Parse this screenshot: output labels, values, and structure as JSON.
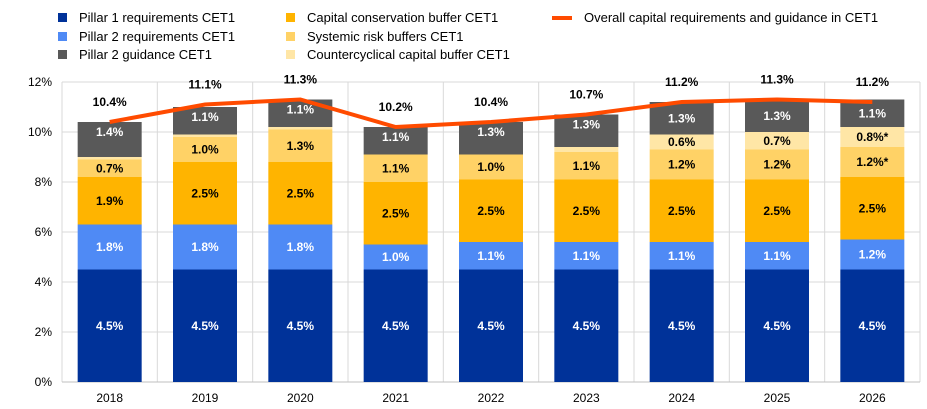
{
  "chart_data": {
    "type": "bar",
    "stacked": true,
    "categories": [
      "2018",
      "2019",
      "2020",
      "2021",
      "2022",
      "2023",
      "2024",
      "2025",
      "2026"
    ],
    "series": [
      {
        "name": "Pillar 1 requirements CET1",
        "color": "#003299",
        "values": [
          4.5,
          4.5,
          4.5,
          4.5,
          4.5,
          4.5,
          4.5,
          4.5,
          4.5
        ],
        "labels": [
          "4.5%",
          "4.5%",
          "4.5%",
          "4.5%",
          "4.5%",
          "4.5%",
          "4.5%",
          "4.5%",
          "4.5%"
        ],
        "label_color": "#ffffff"
      },
      {
        "name": "Pillar 2 requirements CET1",
        "color": "#4f8af5",
        "values": [
          1.8,
          1.8,
          1.8,
          1.0,
          1.1,
          1.1,
          1.1,
          1.1,
          1.2
        ],
        "labels": [
          "1.8%",
          "1.8%",
          "1.8%",
          "1.0%",
          "1.1%",
          "1.1%",
          "1.1%",
          "1.1%",
          "1.2%"
        ],
        "label_color": "#ffffff"
      },
      {
        "name": "Capital conservation buffer CET1",
        "color": "#ffb400",
        "values": [
          1.9,
          2.5,
          2.5,
          2.5,
          2.5,
          2.5,
          2.5,
          2.5,
          2.5
        ],
        "labels": [
          "1.9%",
          "2.5%",
          "2.5%",
          "2.5%",
          "2.5%",
          "2.5%",
          "2.5%",
          "2.5%",
          "2.5%"
        ],
        "label_color": "#000000"
      },
      {
        "name": "Systemic risk buffers CET1",
        "color": "#ffd266",
        "values": [
          0.7,
          1.0,
          1.3,
          1.1,
          1.0,
          1.1,
          1.2,
          1.2,
          1.2
        ],
        "labels": [
          "0.7%",
          "1.0%",
          "1.3%",
          "1.1%",
          "1.0%",
          "1.1%",
          "1.2%",
          "1.2%",
          "1.2%*"
        ],
        "label_color": "#000000"
      },
      {
        "name": "Countercyclical capital buffer CET1",
        "color": "#ffe6a6",
        "values": [
          0.1,
          0.1,
          0.1,
          0.0,
          0.0,
          0.2,
          0.6,
          0.7,
          0.8
        ],
        "labels": [
          "0.1%",
          "0.1%",
          "0.1%",
          "0.0%",
          "0.0%",
          "0.2%",
          "0.6%",
          "0.7%",
          "0.8%*"
        ],
        "label_color": "#000000"
      },
      {
        "name": "Pillar 2 guidance CET1",
        "color": "#595959",
        "values": [
          1.4,
          1.1,
          1.1,
          1.1,
          1.3,
          1.3,
          1.3,
          1.3,
          1.1
        ],
        "labels": [
          "1.4%",
          "1.1%",
          "1.1%",
          "1.1%",
          "1.3%",
          "1.3%",
          "1.3%",
          "1.3%",
          "1.1%"
        ],
        "label_color": "#ffffff"
      }
    ],
    "line": {
      "name": "Overall capital requirements and guidance in CET1",
      "color": "#ff4b00",
      "values": [
        10.4,
        11.1,
        11.3,
        10.2,
        10.4,
        10.7,
        11.2,
        11.3,
        11.2
      ],
      "labels": [
        "10.4%",
        "11.1%",
        "11.3%",
        "10.2%",
        "10.4%",
        "10.7%",
        "11.2%",
        "11.3%",
        "11.2%"
      ]
    },
    "yticks": [
      "0%",
      "2%",
      "4%",
      "6%",
      "8%",
      "10%",
      "12%"
    ],
    "ylim": [
      0,
      12
    ],
    "grid": true,
    "legend": "top"
  }
}
